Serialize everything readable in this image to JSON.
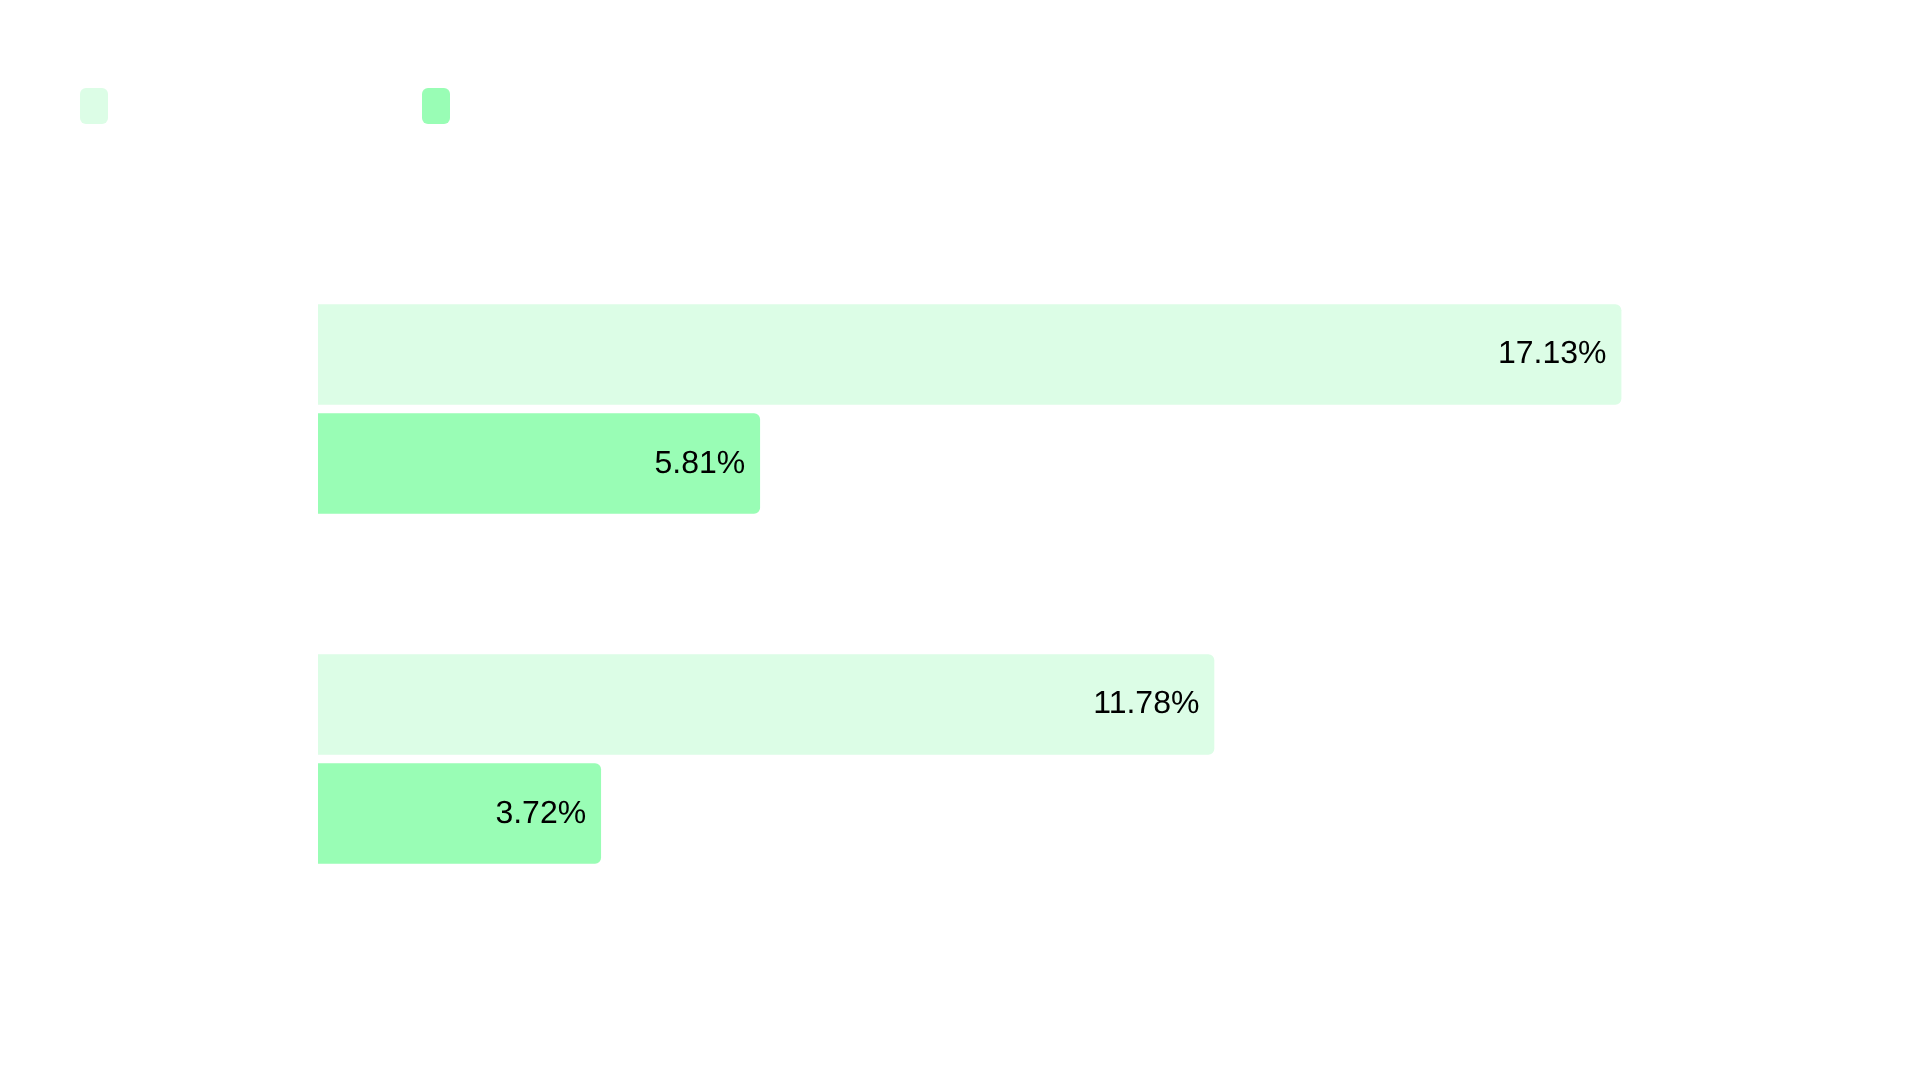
{
  "chart_data": {
    "type": "bar",
    "orientation": "horizontal",
    "categories": [
      null,
      null
    ],
    "series": [
      {
        "color": "#dcfde6",
        "values": [
          17.13,
          11.78
        ],
        "value_labels": [
          "17.13%",
          "11.78%"
        ]
      },
      {
        "color": "#99fdb5",
        "values": [
          5.81,
          3.72
        ],
        "value_labels": [
          "5.81%",
          "3.72%"
        ]
      }
    ]
  }
}
